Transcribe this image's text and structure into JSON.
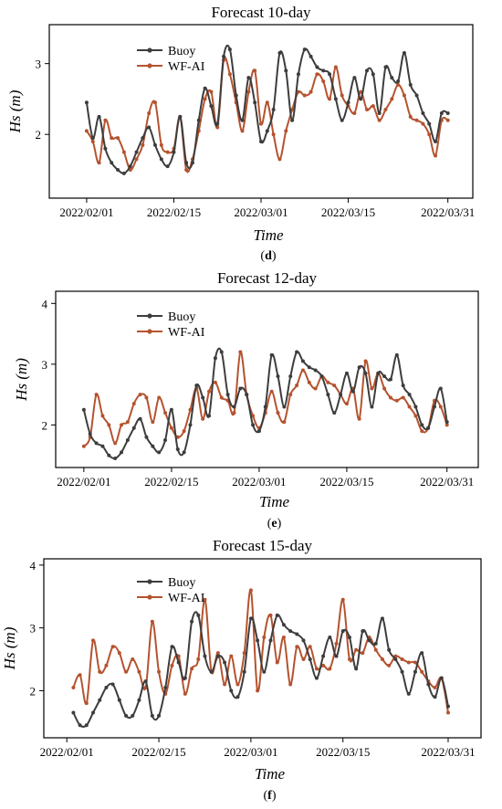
{
  "chart_data": [
    {
      "type": "line",
      "title": "Forecast 10-day",
      "xlabel": "Time",
      "ylabel": "Hs (m)",
      "panel_label": "d",
      "x_ticks": [
        "2022/02/01",
        "2022/02/15",
        "2022/03/01",
        "2022/03/15",
        "2022/03/31"
      ],
      "x_tick_days": [
        0,
        14,
        28,
        42,
        58
      ],
      "xlim": [
        -6,
        62
      ],
      "y_ticks": [
        2,
        3
      ],
      "ylim": [
        1.1,
        3.55
      ],
      "grid": false,
      "legend_position": "top-left",
      "series": [
        {
          "name": "Buoy",
          "color": "#3d3d3d",
          "x": [
            0,
            1,
            2,
            3,
            4,
            5,
            6,
            7,
            8,
            9,
            10,
            11,
            12,
            13,
            14,
            15,
            16,
            17,
            18,
            19,
            20,
            21,
            22,
            23,
            24,
            25,
            26,
            27,
            28,
            29,
            30,
            31,
            32,
            33,
            34,
            35,
            36,
            37,
            38,
            39,
            40,
            41,
            42,
            43,
            44,
            45,
            46,
            47,
            48,
            49,
            50,
            51,
            52,
            53,
            54,
            55,
            56,
            57,
            58
          ],
          "y": [
            2.45,
            1.95,
            2.25,
            1.8,
            1.6,
            1.5,
            1.45,
            1.55,
            1.75,
            1.95,
            2.1,
            1.85,
            1.65,
            1.55,
            1.75,
            2.25,
            1.6,
            1.6,
            2.2,
            2.65,
            2.4,
            2.15,
            3.1,
            3.2,
            2.55,
            2.2,
            2.8,
            2.45,
            1.9,
            2.05,
            2.35,
            3.15,
            2.9,
            2.2,
            2.85,
            3.2,
            3.1,
            2.95,
            2.9,
            2.85,
            2.5,
            2.2,
            2.45,
            2.8,
            2.5,
            2.9,
            2.85,
            2.3,
            2.95,
            2.8,
            2.75,
            3.15,
            2.7,
            2.55,
            2.3,
            2.15,
            1.9,
            2.3,
            2.3
          ]
        },
        {
          "name": "WF-AI",
          "color": "#b5532f",
          "x": [
            0,
            1,
            2,
            3,
            4,
            5,
            6,
            7,
            8,
            9,
            10,
            11,
            12,
            13,
            14,
            15,
            16,
            17,
            18,
            19,
            20,
            21,
            22,
            23,
            24,
            25,
            26,
            27,
            28,
            29,
            30,
            31,
            32,
            33,
            34,
            35,
            36,
            37,
            38,
            39,
            40,
            41,
            42,
            43,
            44,
            45,
            46,
            47,
            48,
            49,
            50,
            51,
            52,
            53,
            54,
            55,
            56,
            57,
            58
          ],
          "y": [
            2.05,
            1.9,
            1.6,
            2.2,
            1.95,
            1.95,
            1.75,
            1.5,
            1.65,
            1.85,
            2.3,
            2.45,
            1.85,
            1.75,
            1.8,
            2.25,
            1.5,
            1.65,
            2.05,
            2.5,
            2.6,
            2.1,
            3.05,
            2.85,
            2.45,
            2.05,
            2.6,
            2.9,
            2.15,
            2.45,
            2.0,
            1.65,
            2.05,
            2.35,
            2.6,
            2.55,
            2.6,
            2.85,
            2.75,
            2.5,
            2.95,
            2.55,
            2.4,
            2.3,
            2.6,
            2.35,
            2.4,
            2.2,
            2.35,
            2.5,
            2.7,
            2.55,
            2.25,
            2.2,
            2.15,
            2.0,
            1.7,
            2.2,
            2.2
          ]
        }
      ]
    },
    {
      "type": "line",
      "title": "Forecast 12-day",
      "xlabel": "Time",
      "ylabel": "Hs (m)",
      "panel_label": "e",
      "x_ticks": [
        "2022/02/01",
        "2022/02/15",
        "2022/03/01",
        "2022/03/15",
        "2022/03/31"
      ],
      "x_tick_days": [
        0,
        14,
        28,
        42,
        58
      ],
      "xlim": [
        -4.5,
        63
      ],
      "y_ticks": [
        2,
        3,
        4
      ],
      "ylim": [
        1.3,
        4.2
      ],
      "grid": false,
      "legend_position": "top-left",
      "series": [
        {
          "name": "Buoy",
          "color": "#3d3d3d",
          "x": [
            0,
            1,
            2,
            3,
            4,
            5,
            6,
            7,
            8,
            9,
            10,
            11,
            12,
            13,
            14,
            15,
            16,
            17,
            18,
            19,
            20,
            21,
            22,
            23,
            24,
            25,
            26,
            27,
            28,
            29,
            30,
            31,
            32,
            33,
            34,
            35,
            36,
            37,
            38,
            39,
            40,
            41,
            42,
            43,
            44,
            45,
            46,
            47,
            48,
            49,
            50,
            51,
            52,
            53,
            54,
            55,
            56,
            57,
            58
          ],
          "y": [
            2.25,
            1.85,
            1.7,
            1.65,
            1.5,
            1.45,
            1.55,
            1.75,
            1.95,
            2.1,
            1.8,
            1.65,
            1.55,
            1.75,
            2.25,
            1.6,
            1.55,
            2.0,
            2.65,
            2.45,
            2.15,
            3.1,
            3.2,
            2.5,
            2.3,
            2.6,
            2.5,
            2.0,
            1.9,
            2.3,
            3.15,
            2.8,
            2.3,
            2.8,
            3.2,
            3.05,
            2.95,
            2.9,
            2.8,
            2.5,
            2.2,
            2.5,
            2.85,
            2.55,
            2.95,
            2.85,
            2.3,
            2.85,
            2.8,
            2.75,
            3.15,
            2.65,
            2.5,
            2.3,
            2.0,
            1.95,
            2.3,
            2.6,
            2.05
          ]
        },
        {
          "name": "WF-AI",
          "color": "#b5532f",
          "x": [
            0,
            1,
            2,
            3,
            4,
            5,
            6,
            7,
            8,
            9,
            10,
            11,
            12,
            13,
            14,
            15,
            16,
            17,
            18,
            19,
            20,
            21,
            22,
            23,
            24,
            25,
            26,
            27,
            28,
            29,
            30,
            31,
            32,
            33,
            34,
            35,
            36,
            37,
            38,
            39,
            40,
            41,
            42,
            43,
            44,
            45,
            46,
            47,
            48,
            49,
            50,
            51,
            52,
            53,
            54,
            55,
            56,
            57,
            58
          ],
          "y": [
            1.65,
            1.8,
            2.5,
            2.15,
            2.0,
            1.7,
            2.0,
            2.05,
            2.35,
            2.5,
            2.45,
            2.05,
            2.45,
            2.2,
            1.95,
            1.8,
            1.9,
            2.25,
            2.6,
            2.1,
            2.55,
            2.7,
            2.45,
            2.4,
            2.2,
            3.2,
            2.5,
            2.15,
            1.95,
            2.2,
            2.55,
            2.2,
            2.05,
            2.5,
            2.65,
            2.9,
            2.7,
            2.6,
            2.8,
            2.7,
            2.65,
            2.5,
            2.35,
            2.6,
            2.1,
            3.05,
            2.6,
            2.85,
            2.6,
            2.45,
            2.4,
            2.45,
            2.3,
            2.15,
            1.9,
            1.95,
            2.4,
            2.3,
            2.0
          ]
        }
      ]
    },
    {
      "type": "line",
      "title": "Forecast 15-day",
      "xlabel": "Time",
      "ylabel": "Hs (m)",
      "panel_label": "f",
      "x_ticks": [
        "2022/02/01",
        "2022/02/15",
        "2022/03/01",
        "2022/03/15",
        "2022/03/31"
      ],
      "x_tick_days": [
        0,
        14,
        28,
        42,
        58
      ],
      "xlim": [
        -3.5,
        63
      ],
      "y_ticks": [
        2,
        3,
        4
      ],
      "ylim": [
        1.25,
        4.1
      ],
      "grid": false,
      "legend_position": "top-left",
      "series": [
        {
          "name": "Buoy",
          "color": "#3d3d3d",
          "x": [
            1,
            2,
            3,
            4,
            5,
            6,
            7,
            8,
            9,
            10,
            11,
            12,
            13,
            14,
            15,
            16,
            17,
            18,
            19,
            20,
            21,
            22,
            23,
            24,
            25,
            26,
            27,
            28,
            29,
            30,
            31,
            32,
            33,
            34,
            35,
            36,
            37,
            38,
            39,
            40,
            41,
            42,
            43,
            44,
            45,
            46,
            47,
            48,
            49,
            50,
            51,
            52,
            53,
            54,
            55,
            56,
            57,
            58
          ],
          "y": [
            1.65,
            1.45,
            1.45,
            1.65,
            1.85,
            2.05,
            2.1,
            1.85,
            1.6,
            1.6,
            1.85,
            2.15,
            1.6,
            1.6,
            2.05,
            2.7,
            2.45,
            2.2,
            3.1,
            3.2,
            2.55,
            2.3,
            2.55,
            2.45,
            2.0,
            1.9,
            2.3,
            3.15,
            2.8,
            2.3,
            2.8,
            3.2,
            3.05,
            2.95,
            2.9,
            2.8,
            2.5,
            2.2,
            2.55,
            2.85,
            2.55,
            2.95,
            2.85,
            2.35,
            2.95,
            2.8,
            2.75,
            3.15,
            2.65,
            2.5,
            2.3,
            1.95,
            2.3,
            2.6,
            2.1,
            1.9,
            2.2,
            1.75
          ]
        },
        {
          "name": "WF-AI",
          "color": "#b5532f",
          "x": [
            1,
            2,
            3,
            4,
            5,
            6,
            7,
            8,
            9,
            10,
            11,
            12,
            13,
            14,
            15,
            16,
            17,
            18,
            19,
            20,
            21,
            22,
            23,
            24,
            25,
            26,
            27,
            28,
            29,
            30,
            31,
            32,
            33,
            34,
            35,
            36,
            37,
            38,
            39,
            40,
            41,
            42,
            43,
            44,
            45,
            46,
            47,
            48,
            49,
            50,
            51,
            52,
            53,
            54,
            55,
            56,
            57,
            58
          ],
          "y": [
            2.05,
            2.25,
            1.8,
            2.8,
            2.3,
            2.4,
            2.7,
            2.6,
            2.3,
            2.5,
            2.3,
            2.05,
            3.1,
            2.3,
            1.95,
            2.4,
            2.55,
            1.95,
            2.35,
            2.5,
            3.45,
            2.3,
            2.6,
            2.1,
            2.55,
            2.1,
            2.6,
            3.6,
            2.0,
            2.85,
            3.2,
            2.45,
            2.85,
            2.1,
            2.7,
            2.5,
            2.7,
            2.35,
            2.4,
            2.35,
            2.75,
            3.45,
            2.5,
            2.65,
            2.6,
            2.85,
            2.65,
            2.5,
            2.4,
            2.55,
            2.5,
            2.45,
            2.45,
            2.3,
            2.15,
            2.05,
            2.2,
            1.65
          ]
        }
      ]
    }
  ]
}
